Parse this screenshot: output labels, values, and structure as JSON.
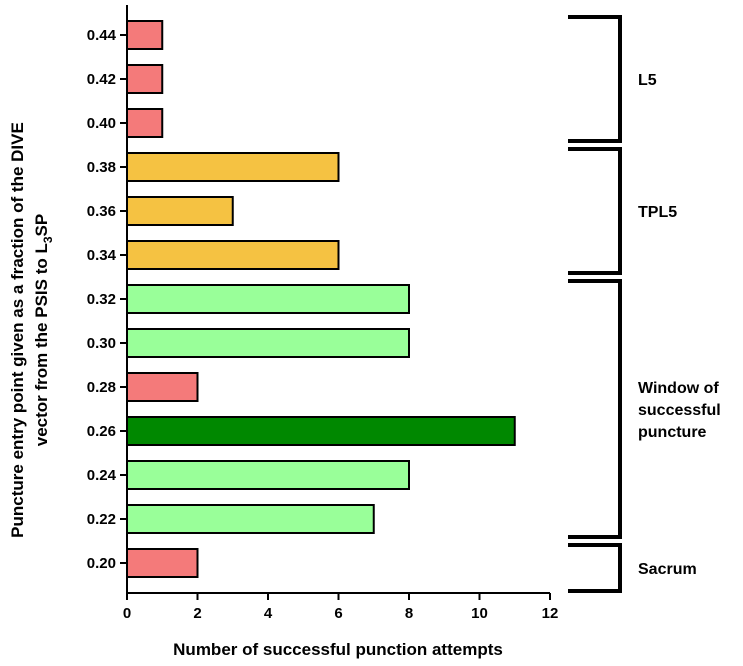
{
  "chart_data": {
    "type": "bar",
    "orientation": "horizontal",
    "categories": [
      "0.20",
      "0.22",
      "0.24",
      "0.26",
      "0.28",
      "0.30",
      "0.32",
      "0.34",
      "0.36",
      "0.38",
      "0.40",
      "0.42",
      "0.44"
    ],
    "values": [
      2,
      7,
      8,
      11,
      2,
      8,
      8,
      6,
      3,
      6,
      1,
      1,
      1
    ],
    "bar_colors": [
      "#f47a7a",
      "#99ff99",
      "#99ff99",
      "#008800",
      "#f47a7a",
      "#99ff99",
      "#99ff99",
      "#f5c242",
      "#f5c242",
      "#f5c242",
      "#f47a7a",
      "#f47a7a",
      "#f47a7a"
    ],
    "xlabel": "Number of successful punction attempts",
    "ylabel_line1": "Puncture entry point given as a fraction of the DIVE",
    "ylabel_line2_prefix": "vector from the PSIS to L",
    "ylabel_line2_sub": "3",
    "ylabel_line2_suffix": "SP",
    "xlim": [
      0,
      12
    ],
    "xticks": [
      "0",
      "2",
      "4",
      "6",
      "8",
      "10",
      "12"
    ],
    "grid": false,
    "brackets": [
      {
        "label_lines": [
          "L5"
        ],
        "from": "0.40",
        "to": "0.44"
      },
      {
        "label_lines": [
          "TPL5"
        ],
        "from": "0.34",
        "to": "0.38"
      },
      {
        "label_lines": [
          "Window of",
          "successful",
          "puncture"
        ],
        "from": "0.22",
        "to": "0.32"
      },
      {
        "label_lines": [
          "Sacrum"
        ],
        "from": "0.20",
        "to": "0.20"
      }
    ]
  }
}
